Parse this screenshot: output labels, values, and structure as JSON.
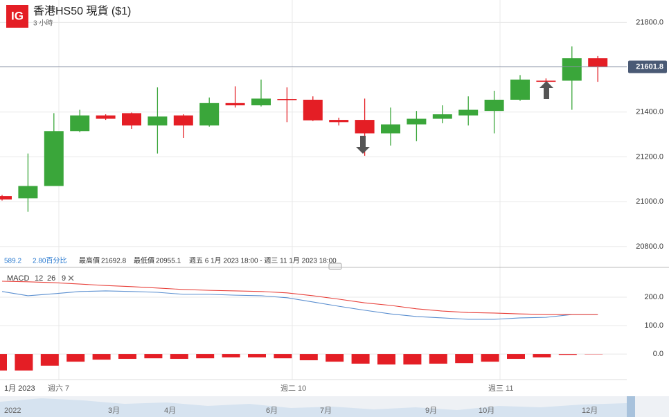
{
  "header": {
    "logo": "IG",
    "title": "香港HS50 現貨 ($1)",
    "interval": "3 小時"
  },
  "info": {
    "change": 589.2,
    "change_pct": "2.80百分比",
    "high_label": "最高價",
    "high": 21692.8,
    "low_label": "最低價",
    "low": 20955.1,
    "range": "週五 6 1月 2023 18:00 - 週三 11 1月 2023 18:00"
  },
  "chart_data": [
    {
      "type": "candlestick",
      "up_color": "#3aa63a",
      "down_color": "#e41e25",
      "open": [
        21025,
        21015,
        21070,
        21315,
        21385,
        21395,
        21340,
        21385,
        21340,
        21440,
        21430,
        21458,
        21455,
        21365,
        21365,
        21305,
        21345,
        21370,
        21385,
        21405,
        21455,
        21540,
        21540,
        21640
      ],
      "high": [
        21030,
        21215,
        21395,
        21410,
        21390,
        21398,
        21510,
        21390,
        21465,
        21515,
        21545,
        21510,
        21470,
        21375,
        21460,
        21420,
        21405,
        21430,
        21470,
        21495,
        21565,
        21550,
        21692.8,
        21650
      ],
      "low": [
        21005,
        20955.1,
        21070,
        21310,
        21365,
        21325,
        21215,
        21285,
        21335,
        21420,
        21425,
        21355,
        21360,
        21340,
        21205,
        21250,
        21270,
        21350,
        21340,
        21305,
        21450,
        21530,
        21410,
        21535
      ],
      "close": [
        21010,
        21070,
        21315,
        21385,
        21370,
        21340,
        21380,
        21340,
        21440,
        21430,
        21460,
        21455,
        21363,
        21355,
        21305,
        21345,
        21370,
        21390,
        21410,
        21455,
        21545,
        21535,
        21640,
        21601.8
      ],
      "last_price": 21601.8,
      "last_price_color": "#4a5a75",
      "ylim": [
        20710,
        21900
      ],
      "yticks": [
        {
          "value": 21800,
          "label": "21800.0"
        },
        {
          "value": 21600,
          "label": "21600.0"
        },
        {
          "value": 21400,
          "label": "21400.0"
        },
        {
          "value": 21200,
          "label": "21200.0"
        },
        {
          "value": 21000,
          "label": "21000.0"
        },
        {
          "value": 20800,
          "label": "20800.0"
        }
      ],
      "grid": true
    },
    {
      "type": "macd",
      "title": "MACD",
      "params": [
        12,
        26,
        9
      ],
      "series": [
        {
          "color": "#5b8fd0",
          "values": [
            220,
            205,
            212,
            220,
            222,
            220,
            217,
            210,
            210,
            207,
            205,
            198,
            183,
            168,
            154,
            141,
            132,
            127,
            122,
            122,
            127,
            129,
            139,
            139
          ]
        },
        {
          "color": "#e8403a",
          "values": [
            256,
            254,
            251,
            246,
            241,
            237,
            232,
            227,
            224,
            222,
            220,
            215,
            205,
            193,
            180,
            171,
            159,
            151,
            146,
            144,
            141,
            139,
            139,
            139
          ]
        }
      ],
      "histogram": {
        "color": "#e41e25",
        "values": [
          -58,
          -58,
          -41,
          -27,
          -20,
          -17,
          -15,
          -17,
          -15,
          -12,
          -12,
          -15,
          -22,
          -27,
          -34,
          -37,
          -37,
          -34,
          -32,
          -27,
          -17,
          -12,
          -3,
          -1
        ]
      },
      "ylim": [
        -90,
        295
      ],
      "yticks": [
        {
          "value": 200,
          "label": "200.0"
        },
        {
          "value": 100,
          "label": "100.0"
        },
        {
          "value": 0,
          "label": "0.0"
        }
      ]
    }
  ],
  "time_labels": [
    "1月 2023",
    "週六 7",
    "週二 10",
    "週三 11"
  ],
  "navigator": [
    "2022",
    "3月",
    "4月",
    "6月",
    "7月",
    "9月",
    "10月",
    "12月"
  ]
}
